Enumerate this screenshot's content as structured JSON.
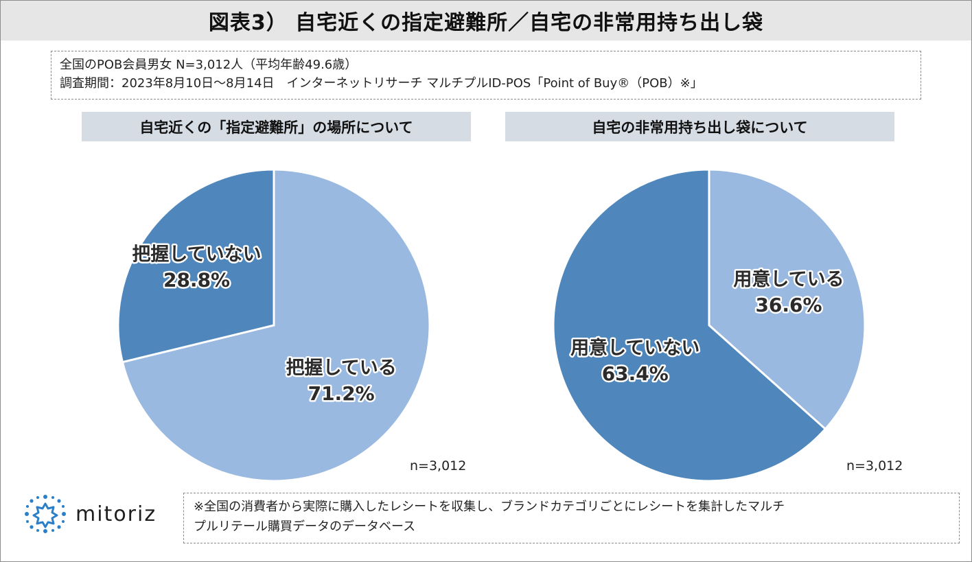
{
  "header": {
    "title": "図表3） 自宅近くの指定避難所／自宅の非常用持ち出し袋"
  },
  "info": {
    "line1": "全国のPOB会員男女 N=3,012人（平均年齢49.6歳）",
    "line2": "調査期間：2023年8月10日～8月14日　インターネットリサーチ マルチプルID-POS「Point of Buy®（POB）※」"
  },
  "chart_data": [
    {
      "type": "pie",
      "title": "自宅近くの「指定避難所」の場所について",
      "n_label": "n=3,012",
      "slices": [
        {
          "label": "把握している",
          "value": 71.2,
          "value_label": "71.2%",
          "color": "#9ab9e0"
        },
        {
          "label": "把握していない",
          "value": 28.8,
          "value_label": "28.8%",
          "color": "#4f87bd"
        }
      ]
    },
    {
      "type": "pie",
      "title": "自宅の非常用持ち出し袋について",
      "n_label": "n=3,012",
      "slices": [
        {
          "label": "用意している",
          "value": 36.6,
          "value_label": "36.6%",
          "color": "#9ab9e0"
        },
        {
          "label": "用意していない",
          "value": 63.4,
          "value_label": "63.4%",
          "color": "#4f87bd"
        }
      ]
    }
  ],
  "logo": {
    "text": "mitoriz",
    "icon": "mitoriz-logo-icon",
    "color": "#2a7fc8"
  },
  "footnote": {
    "line1": "※全国の消費者から実際に購入したレシートを収集し、ブランドカテゴリごとにレシートを集計したマルチ",
    "line2": "プルリテール購買データのデータベース"
  }
}
